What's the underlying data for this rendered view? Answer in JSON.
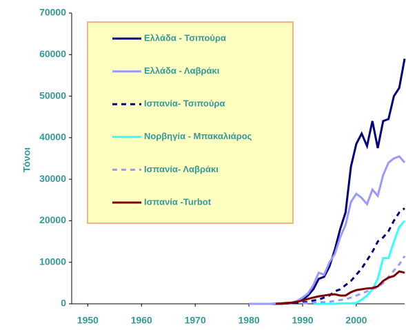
{
  "chart_data": {
    "type": "line",
    "y_label": "Τόνοι",
    "x": [
      1980,
      1981,
      1982,
      1983,
      1984,
      1985,
      1986,
      1987,
      1988,
      1989,
      1990,
      1991,
      1992,
      1993,
      1994,
      1995,
      1996,
      1997,
      1998,
      1999,
      2000,
      2001,
      2002,
      2003,
      2004,
      2005,
      2006,
      2007,
      2008,
      2009
    ],
    "series": [
      {
        "name": "Ελλάδα - Τσιπούρα",
        "color": "#000080",
        "style": "solid",
        "values": [
          0,
          0,
          0,
          0,
          0,
          0,
          0,
          100,
          200,
          500,
          1000,
          2000,
          3500,
          6000,
          6500,
          9000,
          13000,
          18000,
          22000,
          33000,
          38500,
          41000,
          38000,
          44000,
          37500,
          44000,
          44500,
          50000,
          52000,
          59000
        ]
      },
      {
        "name": "Ελλάδα - Λαβράκι",
        "color": "#9999ff",
        "style": "solid",
        "values": [
          0,
          0,
          0,
          0,
          0,
          100,
          100,
          200,
          300,
          700,
          1500,
          2500,
          4500,
          7500,
          7000,
          10000,
          12000,
          16000,
          19000,
          24500,
          26500,
          25500,
          24000,
          27500,
          26000,
          31000,
          34000,
          35000,
          35500,
          34000
        ]
      },
      {
        "name": "Ισπανία- Τσιπούρα",
        "color": "#000080",
        "style": "dashed",
        "values": [
          null,
          null,
          null,
          null,
          null,
          0,
          100,
          100,
          200,
          200,
          300,
          500,
          800,
          1000,
          1500,
          2000,
          3000,
          3500,
          4500,
          5500,
          7000,
          8500,
          10500,
          12500,
          15000,
          16000,
          17500,
          20000,
          22000,
          23000
        ]
      },
      {
        "name": "Νορβηγία - Μπακαλιάρος",
        "color": "#33ffff",
        "style": "solid",
        "values": [
          null,
          null,
          null,
          null,
          null,
          null,
          null,
          null,
          null,
          null,
          null,
          null,
          0,
          0,
          0,
          0,
          0,
          100,
          100,
          100,
          200,
          1000,
          2000,
          3500,
          6000,
          11000,
          11000,
          15000,
          18500,
          20000
        ]
      },
      {
        "name": "Ισπανία- Λαβράκι",
        "color": "#9999ff",
        "style": "dashed",
        "values": [
          null,
          null,
          null,
          null,
          null,
          null,
          null,
          null,
          null,
          null,
          100,
          200,
          300,
          400,
          400,
          500,
          700,
          900,
          1100,
          1500,
          2000,
          2500,
          3000,
          3500,
          4000,
          5000,
          6500,
          8000,
          9500,
          11500
        ]
      },
      {
        "name": "Ισπανία -Turbot",
        "color": "#800000",
        "style": "solid",
        "values": [
          null,
          null,
          null,
          null,
          null,
          0,
          100,
          200,
          300,
          500,
          800,
          1200,
          1500,
          1800,
          2000,
          2200,
          2300,
          2000,
          2000,
          2800,
          3300,
          3500,
          3700,
          3800,
          4200,
          5500,
          6300,
          6700,
          7800,
          7500
        ]
      }
    ],
    "xlim": [
      1947,
      2009
    ],
    "xticks": [
      1950,
      1960,
      1970,
      1980,
      1990,
      2000
    ],
    "ylim": [
      0,
      70000
    ],
    "yticks": [
      0,
      10000,
      20000,
      30000,
      40000,
      50000,
      60000,
      70000
    ],
    "legend": "upper left"
  }
}
